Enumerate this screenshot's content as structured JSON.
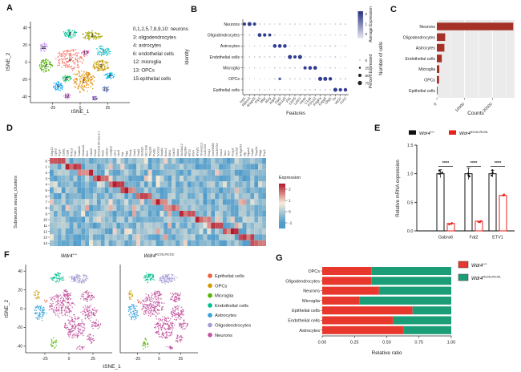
{
  "panel_labels": {
    "a": "A",
    "b": "B",
    "c": "C",
    "d": "D",
    "e": "E",
    "f": "F",
    "g": "G"
  },
  "genotypes": {
    "wt": {
      "base": "Wdr4",
      "sup": "+/+"
    },
    "mut": {
      "base": "Wdr4",
      "sup": "R215L/R215L"
    }
  },
  "chart_data": [
    {
      "panel": "A",
      "type": "scatter",
      "name": "tsne-all-clusters",
      "xlabel": "tSNE_1",
      "ylabel": "tSNE_2",
      "xlim": [
        -45,
        45
      ],
      "ylim": [
        -47,
        47
      ],
      "xticks": [
        -25,
        0,
        25
      ],
      "yticks": [
        40,
        20,
        0,
        -20,
        -40
      ],
      "annotation_lines": [
        "0,1,2,5,7,8,9,10: neurons",
        "3: oligodendrocytes",
        "4: astrocytes",
        "6: endothelial cells",
        "12: microglia",
        "13: OPCs",
        "15:epithelial cells"
      ],
      "clusters": [
        {
          "id": "0",
          "color": "#F8766D",
          "cx": -9,
          "cy": 3,
          "rx": 13,
          "ry": 12,
          "n": 170
        },
        {
          "id": "1",
          "color": "#DE8C00",
          "cx": 3,
          "cy": -22,
          "rx": 10,
          "ry": 12,
          "n": 150
        },
        {
          "id": "2",
          "color": "#C49A00",
          "cx": 19,
          "cy": -4,
          "rx": 7,
          "ry": 7,
          "n": 90
        },
        {
          "id": "3",
          "color": "#A3A500",
          "cx": 11,
          "cy": 31,
          "rx": 9,
          "ry": 5,
          "n": 80
        },
        {
          "id": "4",
          "color": "#53B400",
          "cx": -31,
          "cy": -4,
          "rx": 6,
          "ry": 8,
          "n": 70
        },
        {
          "id": "5",
          "color": "#00BC56",
          "cx": -12,
          "cy": -19,
          "rx": 4,
          "ry": 4,
          "n": 35
        },
        {
          "id": "6",
          "color": "#00C094",
          "cx": -9,
          "cy": 33,
          "rx": 6,
          "ry": 5,
          "n": 55
        },
        {
          "id": "7",
          "color": "#00BFC4",
          "cx": 21,
          "cy": 13,
          "rx": 6,
          "ry": 6,
          "n": 55
        },
        {
          "id": "8",
          "color": "#00B6EB",
          "cx": 27,
          "cy": -16,
          "rx": 5,
          "ry": 4,
          "n": 45
        },
        {
          "id": "9",
          "color": "#06A4FF",
          "cx": -20,
          "cy": -28,
          "rx": 5,
          "ry": 5,
          "n": 45
        },
        {
          "id": "10",
          "color": "#7997FF",
          "cx": 23,
          "cy": -31,
          "rx": 3.5,
          "ry": 4,
          "n": 25
        },
        {
          "id": "11",
          "color": "#BC81FF",
          "cx": -33,
          "cy": 17,
          "rx": 3.5,
          "ry": 5,
          "n": 28
        },
        {
          "id": "12",
          "color": "#E76BF3",
          "cx": -12,
          "cy": -39,
          "rx": 3,
          "ry": 4,
          "n": 22
        },
        {
          "id": "13",
          "color": "#FD61D1",
          "cx": 5,
          "cy": 11,
          "rx": 3,
          "ry": 3.5,
          "n": 22
        },
        {
          "id": "15",
          "color": "#B983FF",
          "cx": 13,
          "cy": -42,
          "rx": 3,
          "ry": 2.5,
          "n": 18
        }
      ]
    },
    {
      "panel": "B",
      "type": "dotplot",
      "name": "marker-gene-dotplot",
      "xlabel": "Features",
      "ylabel": "Identity",
      "rows": [
        "Neurons",
        "Oligodendrocytes",
        "Astrocytes",
        "Endothelial cells",
        "Microglia",
        "OPCs",
        "Epithelial cells"
      ],
      "features": [
        "Syt1",
        "Rbfox3",
        "Snap25",
        "Plp1",
        "Mbp",
        "Mog",
        "Aqp4",
        "Gja1",
        "Slc1a3",
        "Flt1",
        "Cldn5",
        "Ly6c1",
        "Hexb",
        "C1qa",
        "P2ry12",
        "Pdgfra",
        "Cspg4",
        "Olig1",
        "Ttr",
        "Htr2c",
        "Folr1"
      ],
      "marker_blocks": [
        [
          0,
          1,
          2
        ],
        [
          3,
          4,
          5
        ],
        [
          6,
          7,
          8
        ],
        [
          9,
          10,
          11
        ],
        [
          12,
          13,
          14
        ],
        [
          15,
          16,
          17
        ],
        [
          18,
          19,
          20
        ]
      ],
      "extra_dots": [
        {
          "row": 5,
          "col": 7
        }
      ],
      "dot_color": "#27348B",
      "legend_expression": {
        "title": "Average Expression",
        "ticks": [
          2,
          1,
          0
        ],
        "high": "#232E82",
        "low": "#E4E4F2"
      },
      "legend_percent": {
        "title": "Percent Expressed",
        "ticks": [
          0,
          25,
          50,
          75
        ]
      }
    },
    {
      "panel": "C",
      "type": "bar",
      "name": "cells-per-type",
      "categories": [
        "Neurons",
        "Oligodendrocytes",
        "Astrocytes",
        "Endothelial cells",
        "Microglia",
        "OPCs",
        "Epithelial cells"
      ],
      "values": [
        27500,
        3000,
        2700,
        1800,
        900,
        800,
        250
      ],
      "xlabel": "Counts",
      "ylabel": "Number of cells",
      "xticks": [
        0,
        10000,
        20000
      ],
      "xlim": [
        0,
        28000
      ],
      "bar_color": "#A63126",
      "panel_bg": "#EBEBEB"
    },
    {
      "panel": "D",
      "type": "heatmap",
      "name": "subneuron-cluster-heatmap",
      "ylabel": "Subneuron seurat_clusters",
      "rows": [
        "0",
        "1",
        "2",
        "3",
        "4",
        "5",
        "6",
        "7",
        "8",
        "9",
        "10",
        "11",
        "12",
        "13",
        "14"
      ],
      "columns": [
        "Gng13",
        "Cplx3",
        "Pcp4",
        "Calb1",
        "Car8",
        "Prkcd",
        "Fat2",
        "Gabra6",
        "Neurod1",
        "Etv1",
        "Cbln3",
        "Pax6",
        "BC023105-231/2.1",
        "Reln",
        "Grin2c",
        "Cadps2",
        "Lhx1",
        "Lhx5",
        "Sst",
        "Npy",
        "Penk",
        "Gad1",
        "Gad2",
        "Slc6a5",
        "Slc17a6",
        "Tfap2b",
        "Pvalb",
        "Sorcs3",
        "Nxph1",
        "Kcnc2",
        "Klhl1",
        "Gdf10",
        "Aldoc",
        "Slc39a12",
        "Atp2b4",
        "Eif1b",
        "Rfx4",
        "Ahcyl2",
        "Tmem212",
        "Ccdc153",
        "Foxj1",
        "Gm29683",
        "Gm30754",
        "Vwc2",
        "Tac1",
        "Tle4",
        "Foxp2",
        "Unc5d",
        "Arhgef33",
        "Vip",
        "Npas3",
        "Calb2",
        "Tfap2d",
        "Pttg1",
        "Pcp2"
      ],
      "legend": {
        "title": "Expression",
        "ticks": [
          2,
          1,
          0,
          -1
        ]
      },
      "value_range": [
        -1,
        2.5
      ],
      "colors": {
        "high": "#B2182B",
        "mid": "#F6ECD8",
        "low": "#4F9CCC"
      },
      "seed": 11
    },
    {
      "panel": "E",
      "type": "bar-grouped",
      "name": "qpcr-validation",
      "ylabel": "Relative mRNA expression",
      "yticks": [
        "0.0",
        "0.5",
        "1.0",
        "1.5"
      ],
      "ylim": [
        0,
        1.5
      ],
      "groups": [
        "Gabra6",
        "Fat2",
        "ETV1"
      ],
      "series": [
        {
          "name": "Wdr4+/+",
          "color": "#111111",
          "values": [
            1.0,
            1.0,
            1.0
          ],
          "errors": [
            0.07,
            0.1,
            0.06
          ]
        },
        {
          "name": "Wdr4R215L/R215L",
          "color": "#E8211D",
          "values": [
            0.13,
            0.17,
            0.62
          ],
          "errors": [
            0.02,
            0.02,
            0.03
          ]
        }
      ],
      "significance": [
        "****",
        "****",
        "****"
      ]
    },
    {
      "panel": "F",
      "type": "scatter-pair",
      "name": "tsne-by-genotype",
      "xlabel": "tSNE_1",
      "ylabel": "tSNE_2",
      "xlim": [
        -45,
        45
      ],
      "ylim": [
        -47,
        47
      ],
      "xticks": [
        -25,
        0,
        25
      ],
      "yticks": [
        40,
        20,
        0,
        -20,
        -40
      ],
      "legend": [
        {
          "label": "Epithelial cells",
          "color": "#E8613C"
        },
        {
          "label": "OPCs",
          "color": "#CE9C00"
        },
        {
          "label": "Microglia",
          "color": "#53B400"
        },
        {
          "label": "Endothelial cells",
          "color": "#00BE90"
        },
        {
          "label": "Astrocytes",
          "color": "#35A2DB"
        },
        {
          "label": "Oligodendrocytes",
          "color": "#A29BD4"
        },
        {
          "label": "Neurons",
          "color": "#C2549E"
        }
      ],
      "clusters": [
        {
          "label": "Endothelial cells",
          "color": "#00BE90",
          "blobs": [
            [
              -12,
              33,
              7,
              5,
              55
            ]
          ]
        },
        {
          "label": "Oligodendrocytes",
          "color": "#A29BD4",
          "blobs": [
            [
              10,
              32,
              10,
              5,
              95
            ]
          ]
        },
        {
          "label": "OPCs",
          "color": "#CE9C00",
          "blobs": [
            [
              -33,
              15,
              3,
              5,
              22
            ]
          ]
        },
        {
          "label": "Astrocytes",
          "color": "#35A2DB",
          "blobs": [
            [
              -30,
              -4,
              6,
              9,
              75
            ]
          ]
        },
        {
          "label": "Microglia",
          "color": "#53B400",
          "blobs": [
            [
              -16,
              -37,
              3.5,
              6,
              26
            ]
          ]
        },
        {
          "label": "Epithelial cells",
          "color": "#E8613C",
          "blobs": [
            [
              -24,
              8,
              1.5,
              2,
              6
            ]
          ]
        },
        {
          "label": "Neurons",
          "color": "#C2549E",
          "blobs": [
            [
              -8,
              4,
              13,
              12,
              190
            ],
            [
              6,
              -20,
              11,
              12,
              160
            ],
            [
              21,
              -4,
              8,
              8,
              80
            ],
            [
              19,
              13,
              7,
              6,
              55
            ],
            [
              28,
              -17,
              5,
              5,
              35
            ],
            [
              23,
              -32,
              4,
              5,
              28
            ],
            [
              12,
              -42,
              4,
              2.5,
              16
            ],
            [
              -2,
              16,
              5,
              4,
              30
            ]
          ]
        }
      ]
    },
    {
      "panel": "G",
      "type": "stacked-bar",
      "name": "relative-ratio-by-genotype",
      "xlabel": "Relative ratio",
      "xticks": [
        "0.00",
        "0.25",
        "0.50",
        "0.75",
        "1.00"
      ],
      "categories": [
        "OPCs",
        "Oligodendrocytes",
        "Neurons",
        "Microglia",
        "Epithelial cells",
        "Endothelial cells",
        "Astrocytes"
      ],
      "series": [
        {
          "name": "Wdr4+/+",
          "color": "#E8372D",
          "values": [
            0.38,
            0.38,
            0.44,
            0.29,
            0.7,
            0.55,
            0.63
          ]
        },
        {
          "name": "Wdr4R215L/R215L",
          "color": "#1B9E77",
          "values": [
            0.62,
            0.62,
            0.56,
            0.71,
            0.3,
            0.45,
            0.37
          ]
        }
      ]
    }
  ]
}
